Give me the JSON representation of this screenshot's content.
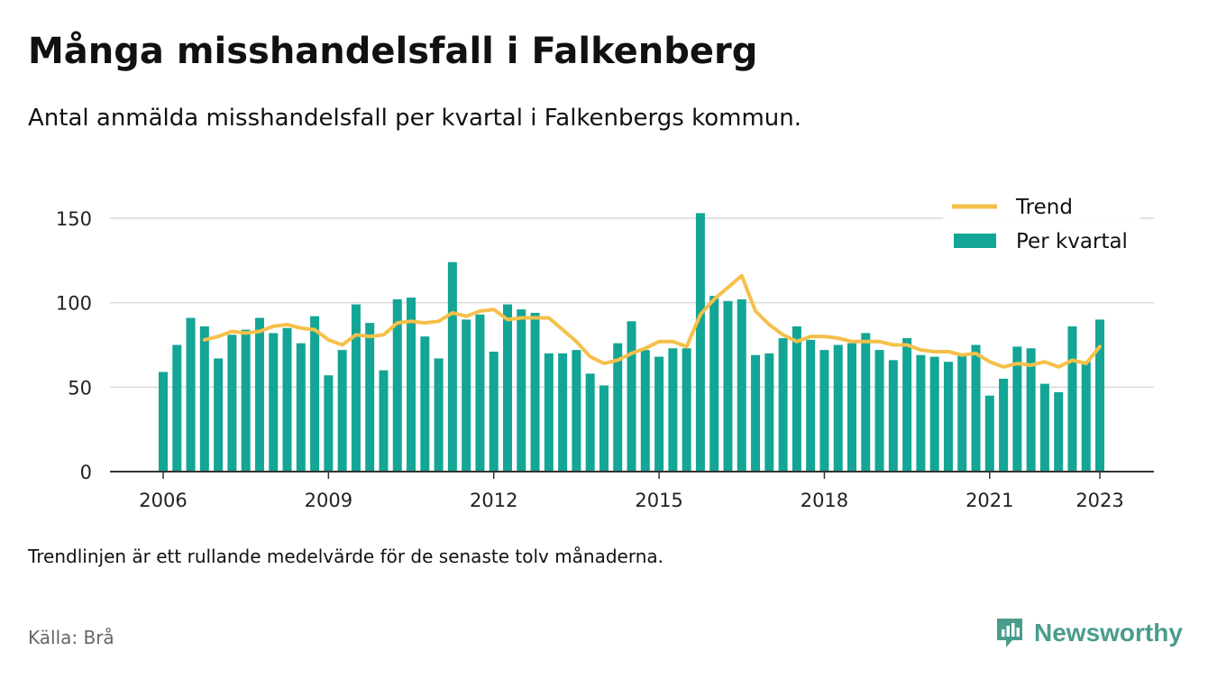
{
  "header": {
    "title": "Många misshandelsfall i Falkenberg",
    "subtitle": "Antal anmälda misshandelsfall per kvartal i Falkenbergs kommun."
  },
  "footer": {
    "note": "Trendlinjen är ett rullande medelvärde för de senaste tolv månaderna.",
    "source": "Källa: Brå",
    "brand": "Newsworthy"
  },
  "colors": {
    "bar": "#13a595",
    "trend": "#f5c04a",
    "grid": "#d9d9d9",
    "axis": "#333333"
  },
  "chart_data": {
    "type": "bar",
    "x_start_year": 2006,
    "periods_per_year": 4,
    "xticks": [
      "2006",
      "2009",
      "2012",
      "2015",
      "2018",
      "2021",
      "2023"
    ],
    "yticks": [
      0,
      50,
      100,
      150
    ],
    "ylim": [
      0,
      160
    ],
    "grid": true,
    "legend_position": "top-right",
    "series": [
      {
        "name": "Per kvartal",
        "type": "bar",
        "values": [
          59,
          75,
          91,
          86,
          67,
          81,
          84,
          91,
          82,
          85,
          76,
          92,
          57,
          72,
          99,
          88,
          60,
          102,
          103,
          80,
          67,
          124,
          90,
          93,
          71,
          99,
          96,
          94,
          70,
          70,
          72,
          58,
          51,
          76,
          89,
          72,
          68,
          73,
          73,
          153,
          104,
          101,
          102,
          69,
          70,
          79,
          86,
          78,
          72,
          75,
          76,
          82,
          72,
          66,
          79,
          69,
          68,
          65,
          69,
          75,
          45,
          55,
          74,
          73,
          52,
          47,
          86,
          65,
          90
        ]
      },
      {
        "name": "Trend",
        "type": "line",
        "values": [
          null,
          null,
          null,
          78,
          80,
          83,
          82,
          83,
          86,
          87,
          85,
          84,
          78,
          75,
          81,
          80,
          81,
          88,
          89,
          88,
          89,
          94,
          92,
          95,
          96,
          90,
          91,
          91,
          91,
          84,
          77,
          68,
          64,
          66,
          70,
          73,
          77,
          77,
          74,
          93,
          102,
          109,
          116,
          95,
          87,
          81,
          77,
          80,
          80,
          79,
          77,
          77,
          77,
          75,
          75,
          72,
          71,
          71,
          69,
          70,
          65,
          62,
          64,
          63,
          65,
          62,
          66,
          64,
          74
        ]
      }
    ]
  }
}
